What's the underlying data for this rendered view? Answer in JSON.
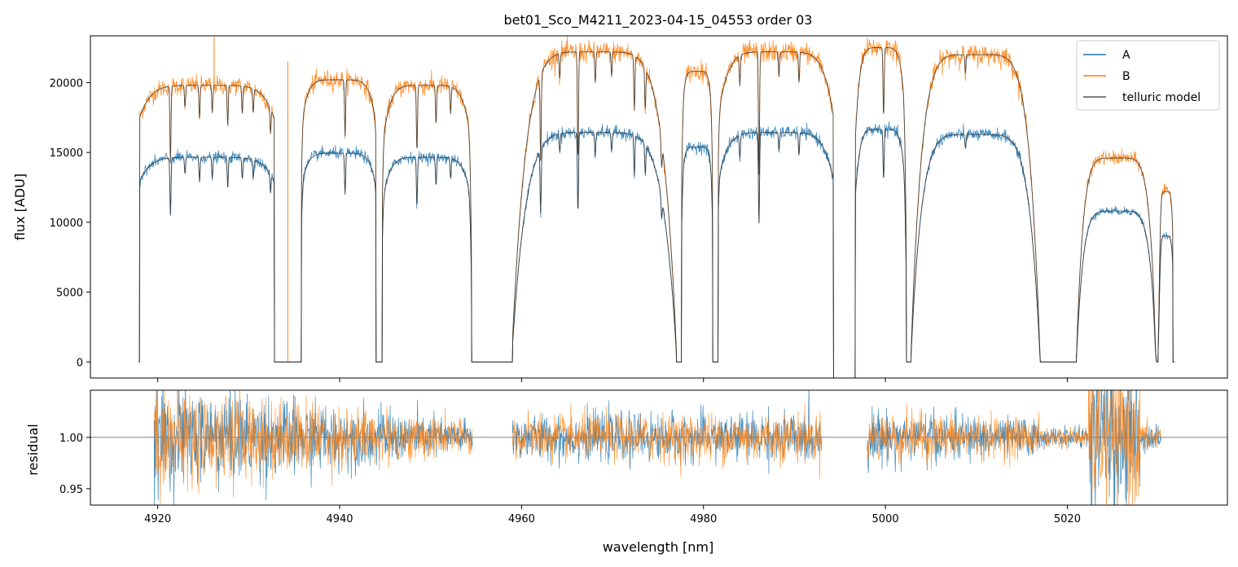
{
  "chart_data": [
    {
      "type": "line",
      "title": "bet01_Sco_M4211_2023-04-15_04553  order 03",
      "xlabel": "",
      "ylabel": "flux [ADU]",
      "xlim": [
        4912.6,
        5037.6
      ],
      "ylim": [
        -1150,
        23350
      ],
      "yticks": [
        0,
        5000,
        10000,
        15000,
        20000
      ],
      "xticks": [
        4920,
        4940,
        4960,
        4980,
        5000,
        5020
      ],
      "xtick_labels_shown": false,
      "legend": {
        "placement": "top-right",
        "entries": [
          "A",
          "B",
          "telluric model"
        ]
      },
      "grid": false,
      "series": [
        {
          "name": "A",
          "color": "#1f77b4",
          "scale": 0.74,
          "noise": 500
        },
        {
          "name": "B",
          "color": "#ff7f0e",
          "scale": 1.0,
          "noise": 620
        },
        {
          "name": "telluric model",
          "color": "#444444",
          "models": [
            "A",
            "B"
          ]
        }
      ],
      "continuum": {
        "note_units": "wavelength nm -> flux ADU for series B; series A uses scale",
        "segments": [
          {
            "x": [
              4918.0,
              4932.8
            ],
            "peak": 19800,
            "edge": 17500
          },
          {
            "x": [
              4935.8,
              4944.0
            ],
            "peak": 20200,
            "edge": 17000
          },
          {
            "x": [
              4944.7,
              4954.5
            ],
            "peak": 19800,
            "edge": 15500
          },
          {
            "x": [
              4959.0,
              4977.0
            ],
            "peak": 22200,
            "edge": 1500
          },
          {
            "x": [
              4977.6,
              4981.0
            ],
            "peak": 20800,
            "edge": 17000
          },
          {
            "x": [
              4981.6,
              4994.3
            ],
            "peak": 22200,
            "edge": 17500
          },
          {
            "x": [
              4996.7,
              5002.3
            ],
            "peak": 22500,
            "edge": 16000
          },
          {
            "x": [
              5002.8,
              5017.0
            ],
            "peak": 22000,
            "edge": 500
          },
          {
            "x": [
              5021.0,
              5029.8
            ],
            "peak": 14600,
            "edge": 300
          },
          {
            "x": [
              5030.0,
              5031.6
            ],
            "peak": 12200,
            "edge": 9000
          }
        ],
        "deep_lines": [
          4934.5,
          4935.5,
          4944.4,
          4954.7,
          4977.3,
          4981.3,
          5002.5,
          5017.4,
          5029.9
        ],
        "narrow_lines": [
          {
            "x": 4921.4,
            "depth": 0.28
          },
          {
            "x": 4923.0,
            "depth": 0.08
          },
          {
            "x": 4924.6,
            "depth": 0.12
          },
          {
            "x": 4926.0,
            "depth": 0.1
          },
          {
            "x": 4927.7,
            "depth": 0.15
          },
          {
            "x": 4929.3,
            "depth": 0.1
          },
          {
            "x": 4930.5,
            "depth": 0.09
          },
          {
            "x": 4932.4,
            "depth": 0.1
          },
          {
            "x": 4940.6,
            "depth": 0.2
          },
          {
            "x": 4948.5,
            "depth": 0.24
          },
          {
            "x": 4950.6,
            "depth": 0.14
          },
          {
            "x": 4952.2,
            "depth": 0.1
          },
          {
            "x": 4962.1,
            "depth": 0.3
          },
          {
            "x": 4964.2,
            "depth": 0.08
          },
          {
            "x": 4966.2,
            "depth": 0.35
          },
          {
            "x": 4968.1,
            "depth": 0.1
          },
          {
            "x": 4969.9,
            "depth": 0.08
          },
          {
            "x": 4972.4,
            "depth": 0.18
          },
          {
            "x": 4973.6,
            "depth": 0.14
          },
          {
            "x": 4975.4,
            "depth": 0.12
          },
          {
            "x": 4986.1,
            "depth": 0.4
          },
          {
            "x": 4984.0,
            "depth": 0.1
          },
          {
            "x": 4988.3,
            "depth": 0.08
          },
          {
            "x": 4990.5,
            "depth": 0.1
          },
          {
            "x": 4999.8,
            "depth": 0.22
          },
          {
            "x": 5008.8,
            "depth": 0.06
          }
        ],
        "spikes": [
          {
            "x": 4926.2,
            "B": 23300
          },
          {
            "x": 4934.3,
            "B": 21500
          }
        ],
        "gap_drop": [
          4994.3,
          4996.7
        ]
      }
    },
    {
      "type": "line",
      "title": "",
      "xlabel": "wavelength [nm]",
      "ylabel": "residual",
      "xlim": [
        4912.6,
        5037.6
      ],
      "ylim": [
        0.934,
        1.046
      ],
      "yticks": [
        0.95,
        1.0
      ],
      "ytick_labels": [
        "0.95",
        "1.00"
      ],
      "xticks": [
        4920,
        4940,
        4960,
        4980,
        5000,
        5020
      ],
      "xtick_labels": [
        "4920",
        "4940",
        "4960",
        "4980",
        "5000",
        "5020"
      ],
      "reference_line": 1.0,
      "series": [
        {
          "name": "A",
          "color": "#1f77b4"
        },
        {
          "name": "B",
          "color": "#ff7f0e"
        }
      ],
      "segments": [
        {
          "x": [
            4919.6,
            4954.6
          ],
          "sigma": [
            0.026,
            0.008
          ]
        },
        {
          "x": [
            4959.0,
            4993.0
          ],
          "sigma": [
            0.011,
            0.012
          ]
        },
        {
          "x": [
            4998.0,
            5017.0
          ],
          "sigma": [
            0.013,
            0.009
          ]
        },
        {
          "x": [
            5017.0,
            5022.3
          ],
          "sigma": [
            0.005,
            0.005
          ]
        },
        {
          "x": [
            5022.3,
            5028.0
          ],
          "sigma": [
            0.035,
            0.035
          ]
        },
        {
          "x": [
            5028.0,
            5030.3
          ],
          "sigma": [
            0.007,
            0.007
          ]
        }
      ]
    }
  ]
}
